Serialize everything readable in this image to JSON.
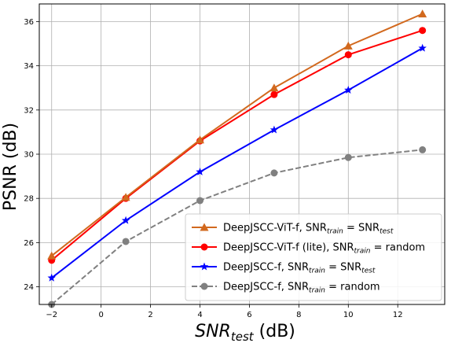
{
  "chart_data": {
    "type": "line",
    "title": "",
    "xlabel": {
      "main": "SNR",
      "sub": "test",
      "unit": " (dB)"
    },
    "ylabel": "PSNR (dB)",
    "xlim": [
      -2.5,
      13.9
    ],
    "ylim": [
      23.2,
      36.8
    ],
    "xticks": [
      -2,
      0,
      2,
      4,
      6,
      8,
      10,
      12
    ],
    "yticks": [
      24,
      26,
      28,
      30,
      32,
      34,
      36
    ],
    "grid": true,
    "legend_position": "bottom-right",
    "x": [
      -2,
      1,
      4,
      7,
      10,
      13
    ],
    "series": [
      {
        "name": "DeepJSCC-ViT-f, SNR_train = SNR_test",
        "legend": {
          "prefix": "DeepJSCC-ViT-f, SNR",
          "sub1": "train",
          "mid": " = SNR",
          "sub2": "test",
          "suffix": ""
        },
        "values": [
          25.4,
          28.05,
          30.65,
          33.0,
          34.9,
          36.35
        ],
        "color": "#d2691e",
        "marker": "triangle",
        "dash": "solid"
      },
      {
        "name": "DeepJSCC-ViT-f (lite), SNR_train = random",
        "legend": {
          "prefix": "DeepJSCC-ViT-f (lite), SNR",
          "sub1": "train",
          "mid": " = random",
          "sub2": "",
          "suffix": ""
        },
        "values": [
          25.2,
          28.0,
          30.6,
          32.7,
          34.5,
          35.6
        ],
        "color": "#ff0000",
        "marker": "circle",
        "dash": "solid"
      },
      {
        "name": "DeepJSCC-f, SNR_train = SNR_test",
        "legend": {
          "prefix": "DeepJSCC-f, SNR",
          "sub1": "train",
          "mid": " = SNR",
          "sub2": "test",
          "suffix": ""
        },
        "values": [
          24.4,
          27.0,
          29.2,
          31.1,
          32.9,
          34.8
        ],
        "color": "#0000ff",
        "marker": "star",
        "dash": "solid"
      },
      {
        "name": "DeepJSCC-f, SNR_train = random",
        "legend": {
          "prefix": "DeepJSCC-f, SNR",
          "sub1": "train",
          "mid": " = random",
          "sub2": "",
          "suffix": ""
        },
        "values": [
          23.2,
          26.05,
          27.9,
          29.15,
          29.85,
          30.2
        ],
        "color": "#808080",
        "marker": "circle",
        "dash": "dashed"
      }
    ]
  }
}
